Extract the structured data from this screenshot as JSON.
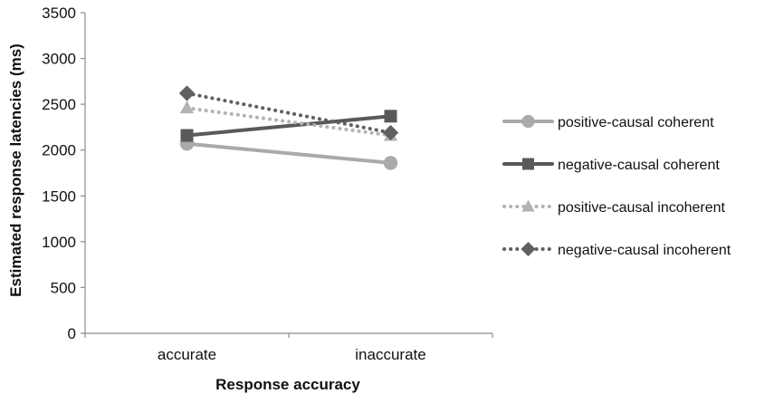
{
  "chart_data": {
    "type": "line",
    "title": "",
    "xlabel": "Response accuracy",
    "ylabel": "Estimated response latencies (ms)",
    "categories": [
      "accurate",
      "inaccurate"
    ],
    "ylim": [
      0,
      3500
    ],
    "yticks": [
      0,
      500,
      1000,
      1500,
      2000,
      2500,
      3000,
      3500
    ],
    "grid": false,
    "legend_position": "right",
    "series": [
      {
        "name": "positive-causal coherent",
        "values": [
          2070,
          1860
        ],
        "color": "#aaaaaa",
        "marker": "circle",
        "line": "solid"
      },
      {
        "name": "negative-causal coherent",
        "values": [
          2160,
          2370
        ],
        "color": "#595959",
        "marker": "square",
        "line": "solid"
      },
      {
        "name": "positive-causal incoherent",
        "values": [
          2460,
          2160
        ],
        "color": "#b3b3b3",
        "marker": "triangle",
        "line": "dotted"
      },
      {
        "name": "negative-causal incoherent",
        "values": [
          2620,
          2190
        ],
        "color": "#606060",
        "marker": "diamond",
        "line": "dotted"
      }
    ]
  }
}
